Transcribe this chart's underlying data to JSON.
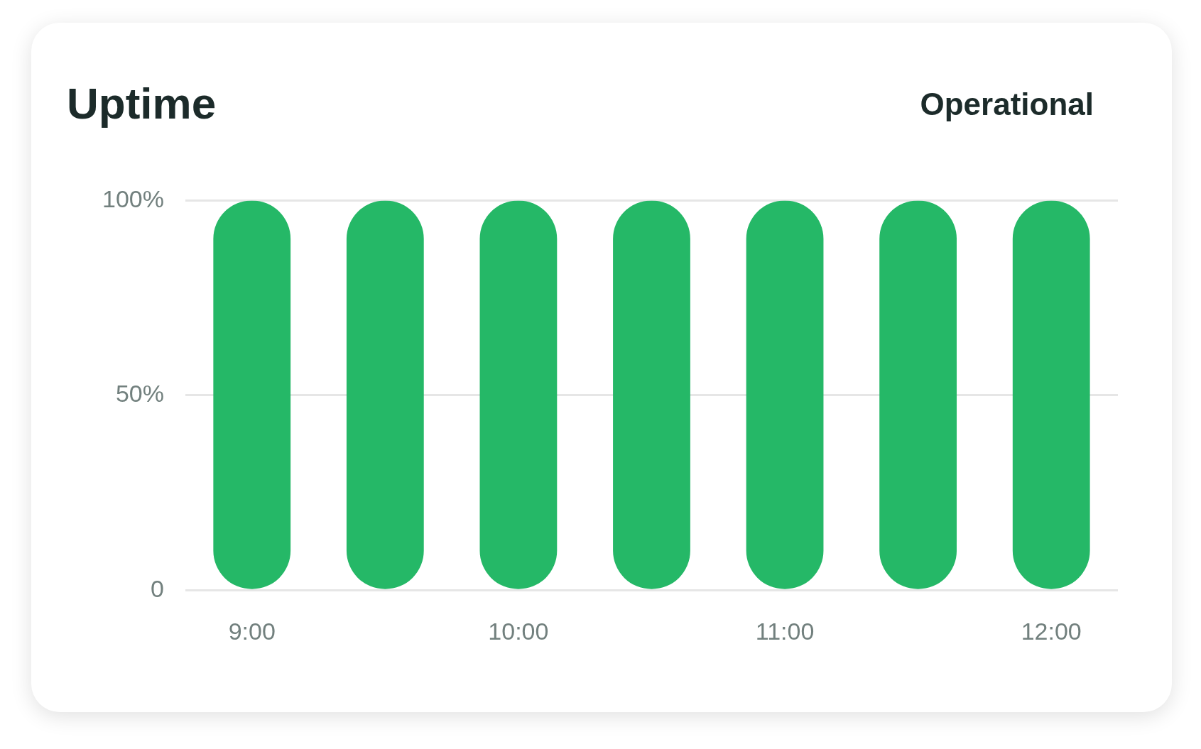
{
  "chart_data": {
    "type": "bar",
    "title": "Uptime",
    "annotations": [
      "Operational"
    ],
    "categories": [
      "9:00",
      null,
      "10:00",
      null,
      "11:00",
      null,
      "12:00"
    ],
    "values": [
      100,
      100,
      100,
      100,
      100,
      100,
      100
    ],
    "color": "#25b867",
    "ylim": [
      0,
      100
    ],
    "yticks": [
      {
        "value": 0,
        "label": "0"
      },
      {
        "value": 50,
        "label": "50%"
      },
      {
        "value": 100,
        "label": "100%"
      }
    ],
    "grid": "y"
  }
}
